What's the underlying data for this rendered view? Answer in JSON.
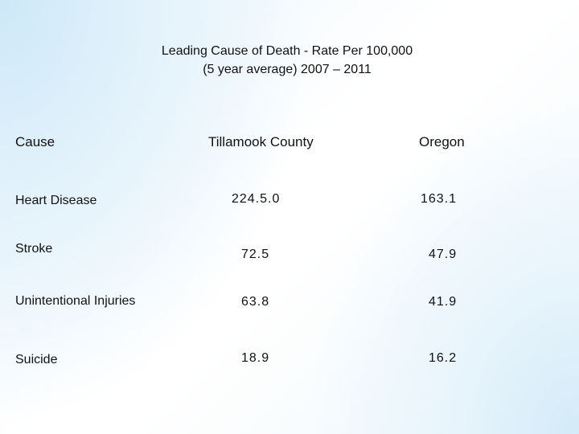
{
  "title": {
    "line1": "Leading Cause of Death  - Rate Per 100,000",
    "line2": "(5 year average) 2007 – 2011"
  },
  "table": {
    "headers": [
      "Cause",
      "Tillamook County",
      "Oregon"
    ],
    "rows": [
      {
        "cause": "Heart Disease",
        "county": "224.5.0",
        "oregon": "163.1"
      },
      {
        "cause": "Stroke",
        "county": "72.5",
        "oregon": "47.9"
      },
      {
        "cause": "Unintentional Injuries",
        "county": "63.8",
        "oregon": "41.9"
      },
      {
        "cause": "Suicide",
        "county": "18.9",
        "oregon": "16.2"
      }
    ]
  },
  "colors": {
    "background_tint": "#cde8f8",
    "text": "#111111"
  }
}
